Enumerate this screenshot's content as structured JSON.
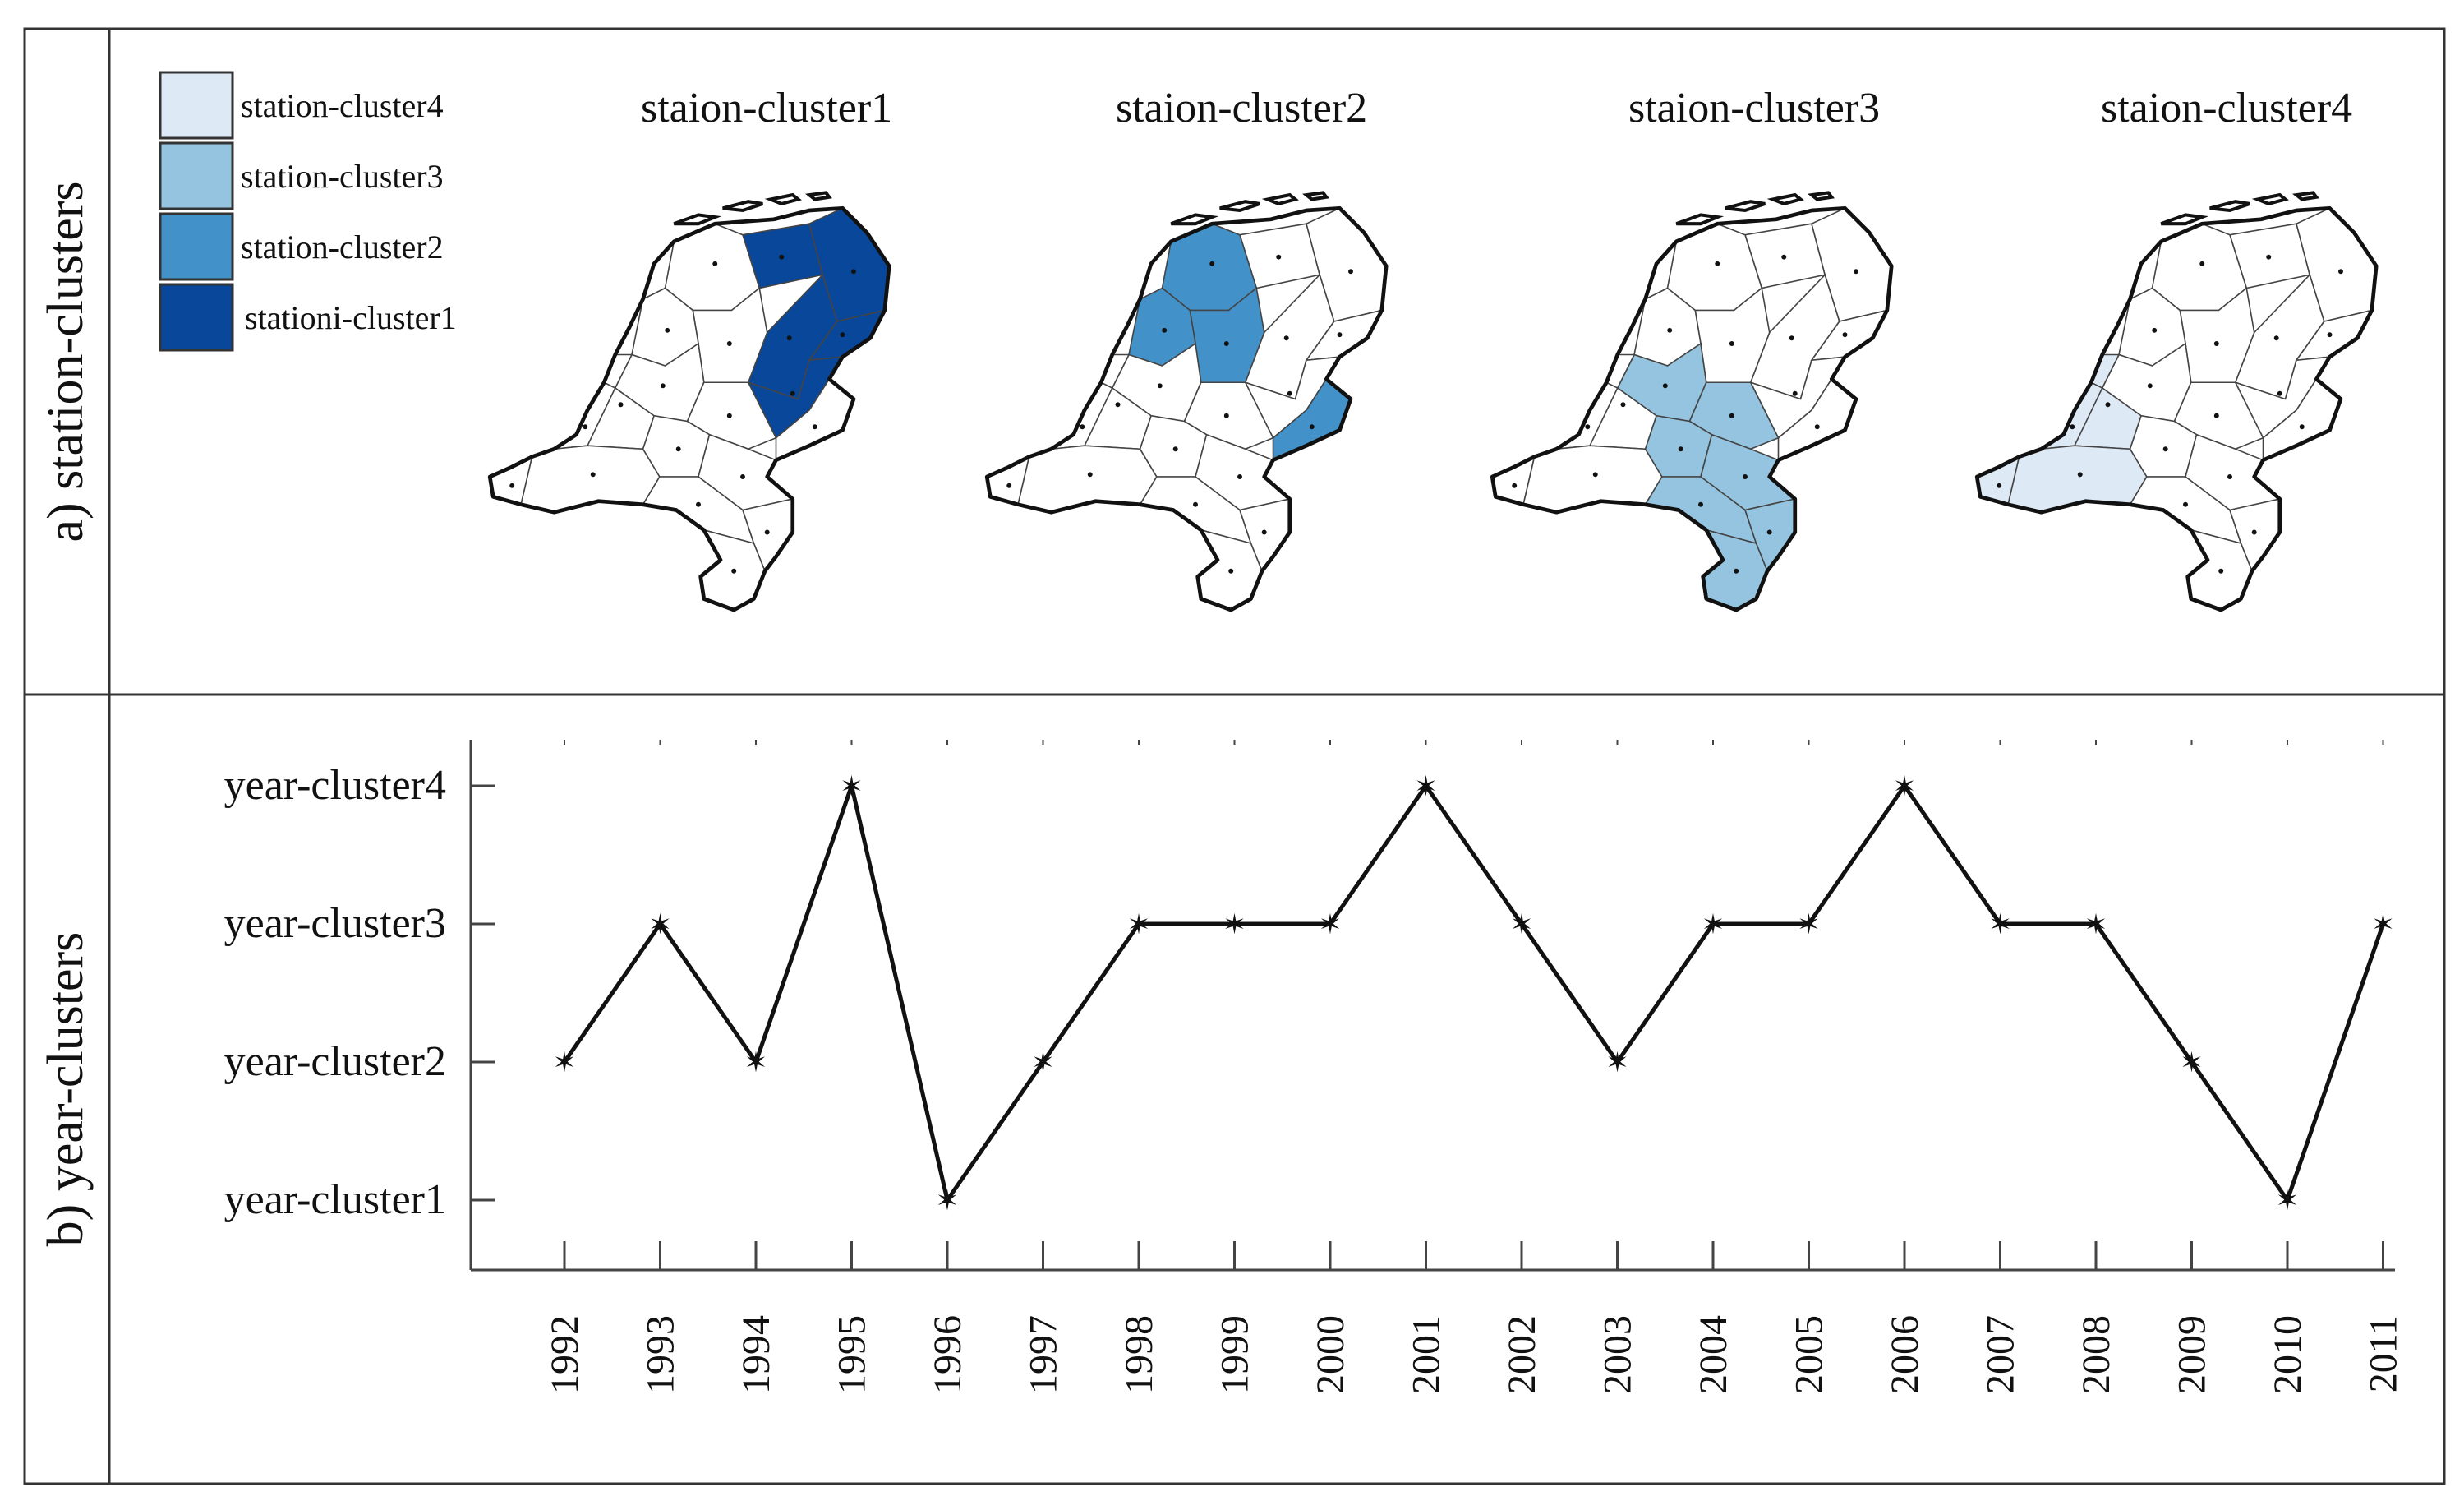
{
  "panels": {
    "a_label": "a) station-clusters",
    "b_label": "b) year-clusters"
  },
  "legend": [
    {
      "label": "station-cluster4",
      "color": "#dde9f5"
    },
    {
      "label": "station-cluster3",
      "color": "#94c4df"
    },
    {
      "label": "station-cluster2",
      "color": "#4291c8"
    },
    {
      "label": "stationi-cluster1",
      "color": "#08479a"
    }
  ],
  "maps": [
    {
      "title": "staion-cluster1",
      "cluster": 1,
      "color": "#08479a"
    },
    {
      "title": "staion-cluster2",
      "cluster": 2,
      "color": "#4291c8"
    },
    {
      "title": "staion-cluster3",
      "cluster": 3,
      "color": "#94c4df"
    },
    {
      "title": "staion-cluster4",
      "cluster": 4,
      "color": "#dde9f5"
    }
  ],
  "chart_data": {
    "type": "line",
    "title": "",
    "xlabel": "",
    "ylabel": "",
    "marker": "star",
    "categories": [
      "1992",
      "1993",
      "1994",
      "1995",
      "1996",
      "1997",
      "1998",
      "1999",
      "2000",
      "2001",
      "2002",
      "2003",
      "2004",
      "2005",
      "2006",
      "2007",
      "2008",
      "2009",
      "2010",
      "2011"
    ],
    "y_categories": [
      "year-cluster1",
      "year-cluster2",
      "year-cluster3",
      "year-cluster4"
    ],
    "series": [
      {
        "values": [
          2,
          3,
          2,
          4,
          1,
          2,
          3,
          3,
          3,
          4,
          3,
          2,
          3,
          3,
          4,
          3,
          3,
          2,
          1,
          3
        ]
      }
    ],
    "ylim": [
      1,
      4
    ],
    "grid": false
  }
}
